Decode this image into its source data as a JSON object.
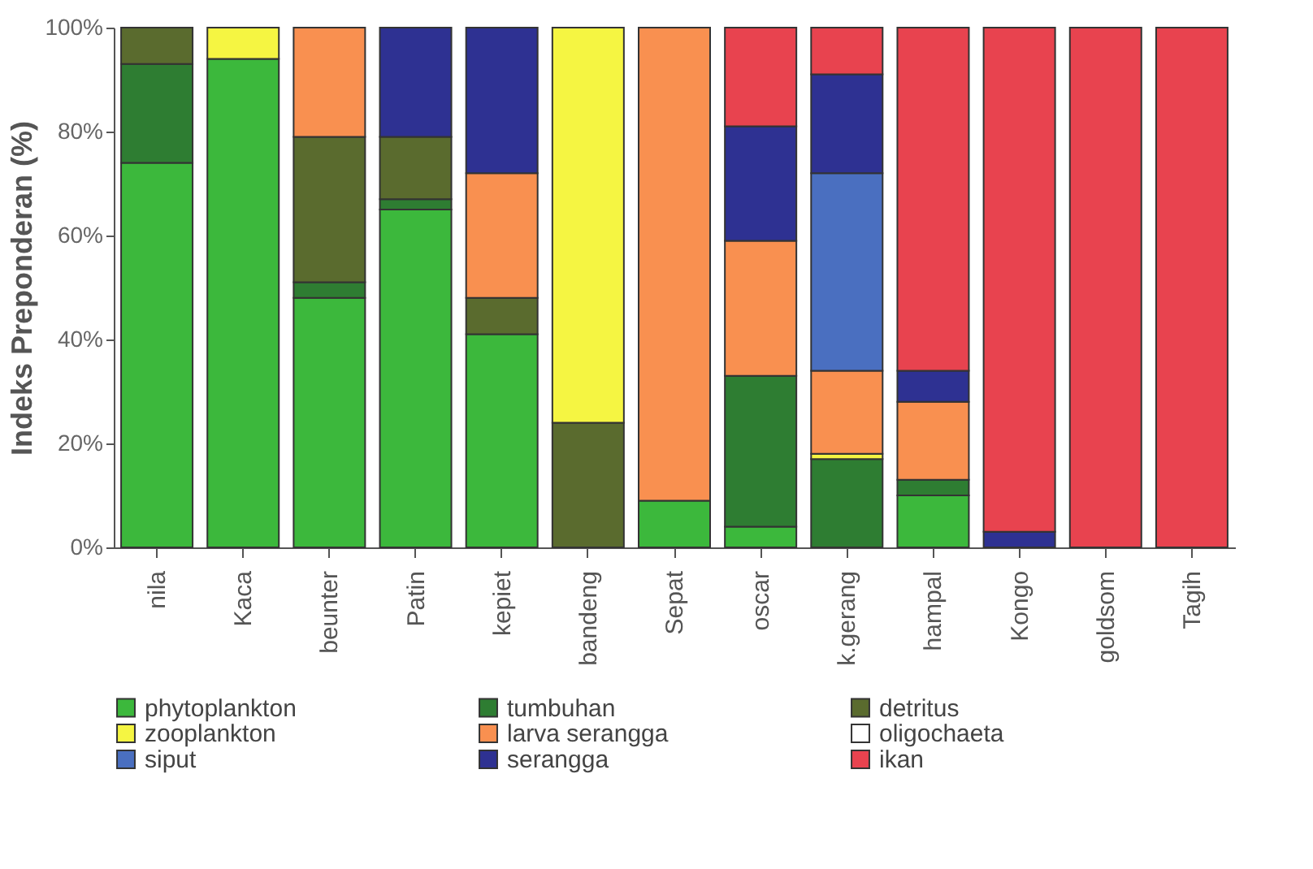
{
  "chart_data": {
    "type": "bar",
    "stacked": true,
    "ylabel": "Indeks Preponderan (%)",
    "categories": [
      "nila",
      "Kaca",
      "beunter",
      "Patin",
      "kepiet",
      "bandeng",
      "Sepat",
      "oscar",
      "k.gerang",
      "hampal",
      "Kongo",
      "goldsom",
      "Tagih"
    ],
    "series": [
      {
        "name": "phytoplankton",
        "color": "#3cb83c",
        "values": [
          74,
          94,
          48,
          65,
          41,
          null,
          9,
          4,
          null,
          10,
          null,
          null,
          null
        ]
      },
      {
        "name": "tumbuhan",
        "color": "#2e7d32",
        "values": [
          19,
          null,
          3,
          2,
          null,
          null,
          null,
          29,
          17,
          3,
          null,
          null,
          null
        ]
      },
      {
        "name": "detritus",
        "color": "#5a6b2e",
        "values": [
          7,
          null,
          28,
          12,
          7,
          24,
          null,
          null,
          null,
          null,
          null,
          null,
          null
        ]
      },
      {
        "name": "zooplankton",
        "color": "#f5f542",
        "values": [
          null,
          6,
          null,
          null,
          null,
          76,
          null,
          null,
          1,
          null,
          null,
          null,
          null
        ]
      },
      {
        "name": "larva serangga",
        "color": "#f99050",
        "values": [
          null,
          null,
          21,
          null,
          24,
          null,
          91,
          26,
          16,
          15,
          null,
          null,
          null
        ]
      },
      {
        "name": "oligochaeta",
        "color": "#ffffff",
        "values": [
          null,
          null,
          null,
          null,
          null,
          null,
          null,
          null,
          null,
          null,
          null,
          null,
          null
        ]
      },
      {
        "name": "siput",
        "color": "#4a6fc0",
        "values": [
          null,
          null,
          null,
          null,
          null,
          null,
          null,
          null,
          38,
          null,
          null,
          null,
          null
        ]
      },
      {
        "name": "serangga",
        "color": "#2e3192",
        "values": [
          null,
          null,
          null,
          21,
          28,
          null,
          null,
          22,
          19,
          6,
          3,
          null,
          null
        ]
      },
      {
        "name": "ikan",
        "color": "#e8434f",
        "values": [
          null,
          null,
          null,
          null,
          null,
          null,
          null,
          19,
          9,
          66,
          97,
          100,
          100
        ]
      }
    ],
    "ylim": [
      0,
      100
    ],
    "yticks": [
      {
        "value": 0,
        "label": "0%"
      },
      {
        "value": 20,
        "label": "20%"
      },
      {
        "value": 40,
        "label": "40%"
      },
      {
        "value": 60,
        "label": "60%"
      },
      {
        "value": 80,
        "label": "80%"
      },
      {
        "value": 100,
        "label": "100%"
      }
    ],
    "grid": false,
    "legend": "bottom"
  }
}
